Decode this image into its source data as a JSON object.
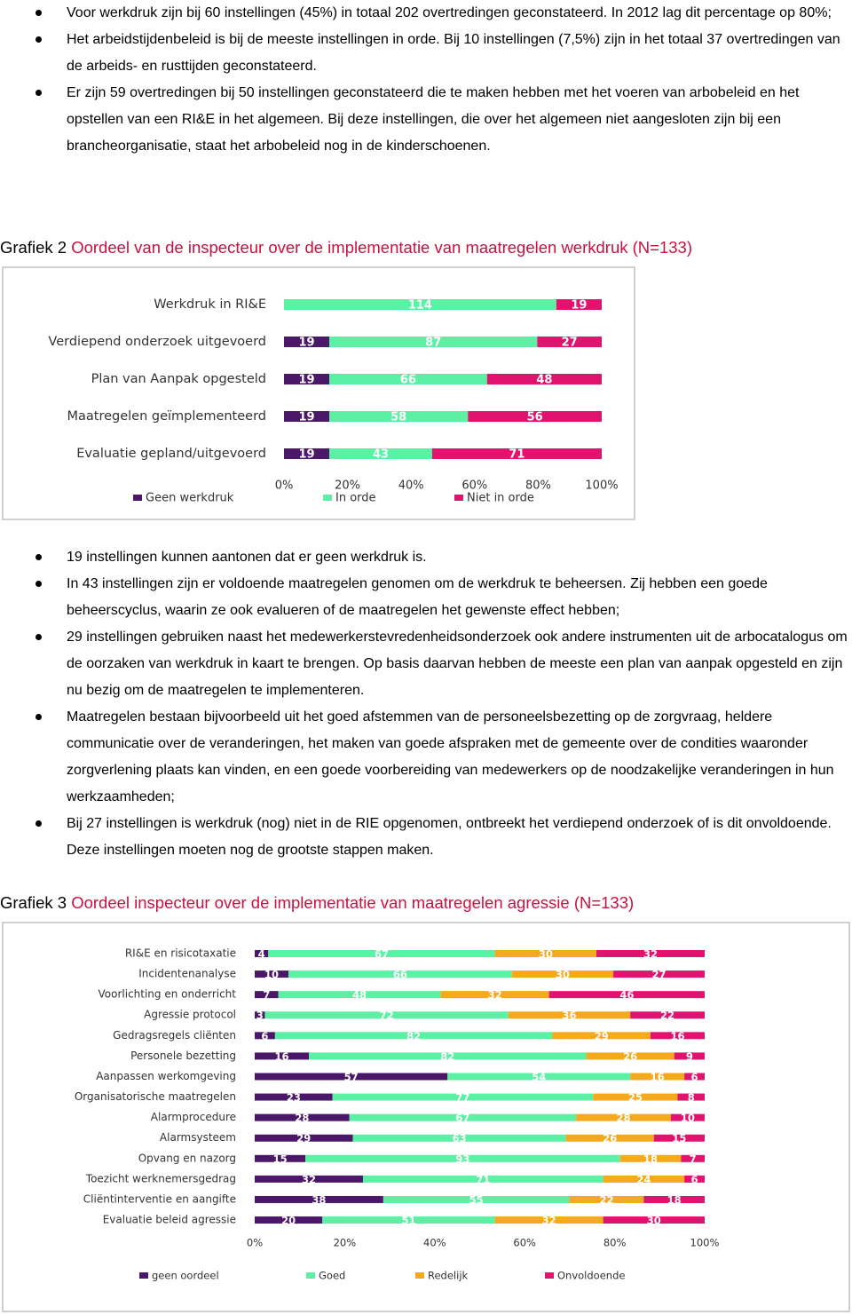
{
  "bullets_top": [
    "Voor werkdruk zijn bij 60 instellingen (45%) in totaal 202 overtredingen geconstateerd. In 2012 lag dit percentage op 80%;",
    "Het arbeidstijdenbeleid is bij de meeste instellingen in orde. Bij 10 instellingen (7,5%) zijn in het totaal 37 overtredingen van de arbeids- en rusttijden geconstateerd.",
    "Er zijn 59 overtredingen bij 50 instellingen geconstateerd die te maken hebben met het voeren van arbobeleid en het opstellen van een RI&E in het algemeen. Bij deze instellingen, die over het algemeen niet aangesloten zijn bij een brancheorganisatie, staat het arbobeleid nog in de kinderschoenen."
  ],
  "headings": [
    {
      "number": "Grafiek 2",
      "text": "Oordeel van de inspecteur over de implementatie van maatregelen werkdruk (N=133)"
    },
    {
      "number": "Grafiek 3",
      "text": "Oordeel inspecteur over de implementatie van maatregelen agressie (N=133)"
    }
  ],
  "bullets_middle": [
    "19 instellingen kunnen aantonen dat er geen werkdruk is.",
    "In 43 instellingen zijn er voldoende maatregelen genomen om de werkdruk te beheersen. Zij hebben een goede beheerscyclus, waarin ze ook evalueren of de maatregelen het gewenste effect hebben;",
    "29 instellingen gebruiken naast het medewerkerstevredenheidsonderzoek ook andere instrumenten uit de arbocatalogus om de oorzaken van werkdruk in kaart te brengen. Op basis daarvan hebben de meeste een plan van aanpak opgesteld en zijn nu bezig om de maatregelen te implementeren.",
    "Maatregelen bestaan bijvoorbeeld uit het goed afstemmen van de personeelsbezetting op de zorgvraag, heldere communicatie over de veranderingen, het maken van goede afspraken met de gemeente over de condities waaronder zorgverlening plaats kan vinden, en een goede voorbereiding van medewerkers op de noodzakelijke veranderingen in hun werkzaamheden;",
    "Bij 27 instellingen is werkdruk (nog) niet in de RIE opgenomen, ontbreekt het verdiepend onderzoek of is dit onvoldoende. Deze instellingen moeten nog de grootste stappen maken."
  ],
  "chart_data": [
    {
      "type": "bar",
      "orientation": "horizontal",
      "stacked": "percent",
      "categories": [
        "Werkdruk in RI&E",
        "Verdiepend onderzoek uitgevoerd",
        "Plan van Aanpak opgesteld",
        "Maatregelen geïmplementeerd",
        "Evaluatie gepland/uitgevoerd"
      ],
      "series": [
        {
          "name": "Geen werkdruk",
          "color": "#4b1768",
          "values": [
            0,
            19,
            19,
            19,
            19
          ]
        },
        {
          "name": "In orde",
          "color": "#5cf0a4",
          "values": [
            114,
            87,
            66,
            58,
            43
          ]
        },
        {
          "name": "Niet in orde",
          "color": "#e0146e",
          "values": [
            19,
            27,
            48,
            56,
            71
          ]
        }
      ],
      "xlim": [
        0,
        100
      ],
      "xticks": [
        {
          "value": 0,
          "label": "0%"
        },
        {
          "value": 20,
          "label": "20%"
        },
        {
          "value": 40,
          "label": "40%"
        },
        {
          "value": 60,
          "label": "60%"
        },
        {
          "value": 80,
          "label": "80%"
        },
        {
          "value": 100,
          "label": "100%"
        }
      ],
      "legend": "bottom"
    },
    {
      "type": "bar",
      "orientation": "horizontal",
      "stacked": "percent",
      "categories": [
        "RI&E en risicotaxatie",
        "Incidentenanalyse",
        "Voorlichting en onderricht",
        "Agressie protocol",
        "Gedragsregels cliënten",
        "Personele bezetting",
        "Aanpassen werkomgeving",
        "Organisatorische maatregelen",
        "Alarmprocedure",
        "Alarmsysteem",
        "Opvang en nazorg",
        "Toezicht werknemersgedrag",
        "Cliëntinterventie en aangifte",
        "Evaluatie beleid agressie"
      ],
      "series": [
        {
          "name": "geen oordeel",
          "color": "#4b1768",
          "values": [
            4,
            10,
            7,
            3,
            6,
            16,
            57,
            23,
            28,
            29,
            15,
            32,
            38,
            20
          ]
        },
        {
          "name": "Goed",
          "color": "#5cf0a4",
          "values": [
            67,
            66,
            48,
            72,
            82,
            82,
            54,
            77,
            67,
            63,
            93,
            71,
            55,
            51
          ]
        },
        {
          "name": "Redelijk",
          "color": "#f5a91c",
          "values": [
            30,
            30,
            32,
            36,
            29,
            26,
            16,
            25,
            28,
            26,
            18,
            24,
            22,
            32
          ]
        },
        {
          "name": "Onvoldoende",
          "color": "#e0146e",
          "values": [
            32,
            27,
            46,
            22,
            16,
            9,
            6,
            8,
            10,
            15,
            7,
            6,
            18,
            30
          ]
        }
      ],
      "xlim": [
        0,
        100
      ],
      "xticks": [
        {
          "value": 0,
          "label": "0%"
        },
        {
          "value": 20,
          "label": "20%"
        },
        {
          "value": 40,
          "label": "40%"
        },
        {
          "value": 60,
          "label": "60%"
        },
        {
          "value": 80,
          "label": "80%"
        },
        {
          "value": 100,
          "label": "100%"
        }
      ],
      "legend": "bottom"
    }
  ]
}
